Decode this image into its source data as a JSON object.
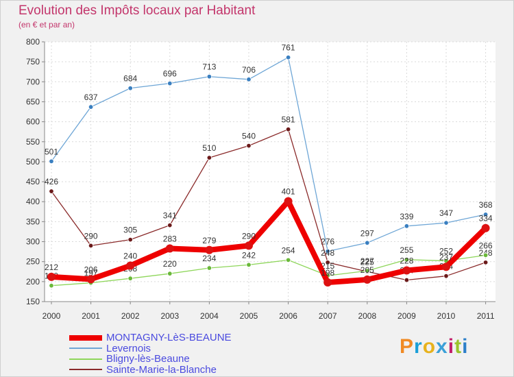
{
  "header": {
    "title": "Evolution des Impôts locaux par Habitant",
    "subtitle": "(en € et par an)"
  },
  "brand": {
    "letters": [
      "P",
      "r",
      "o",
      "x",
      "i",
      "t",
      "i"
    ],
    "colors": [
      "#f08a24",
      "#1a9fd8",
      "#e7b21d",
      "#3aa0d8",
      "#c21e6b",
      "#9bc42d",
      "#2c7fc9"
    ]
  },
  "chart_data": {
    "type": "line",
    "title": "Evolution des Impôts locaux par Habitant",
    "subtitle": "(en € et par an)",
    "xlabel": "",
    "ylabel": "",
    "x": [
      "2000",
      "2001",
      "2002",
      "2003",
      "2004",
      "2005",
      "2006",
      "2007",
      "2008",
      "2009",
      "2010",
      "2011"
    ],
    "ylim": [
      150,
      800
    ],
    "yticks": [
      150,
      200,
      250,
      300,
      350,
      400,
      450,
      500,
      550,
      600,
      650,
      700,
      750,
      800
    ],
    "grid": true,
    "legend_position": "bottom-left",
    "series": [
      {
        "name": "Levernois",
        "color": "#6ea6d6",
        "marker": "#3a7fc0",
        "values": [
          501,
          637,
          684,
          696,
          713,
          706,
          761,
          276,
          297,
          339,
          347,
          368
        ],
        "labels": [
          "501",
          "637",
          "684",
          "696",
          "713",
          "706",
          "761",
          "276",
          "297",
          "339",
          "347",
          "368"
        ]
      },
      {
        "name": "Sainte-Marie-la-Blanche",
        "color": "#8a2a2a",
        "marker": "#6b1a1a",
        "values": [
          426,
          290,
          305,
          341,
          510,
          540,
          581,
          248,
          225,
          204,
          214,
          248
        ],
        "labels": [
          "426",
          "290",
          "305",
          "341",
          "510",
          "540",
          "581",
          "248",
          "225",
          "204",
          "214",
          "248"
        ]
      },
      {
        "name": "Bligny-lès-Beaune",
        "color": "#8ed65a",
        "marker": "#6ab83a",
        "values": [
          190,
          197,
          208,
          220,
          234,
          242,
          254,
          215,
          227,
          255,
          252,
          266
        ],
        "labels": [
          "190",
          "197",
          "208",
          "220",
          "234",
          "242",
          "254",
          "215",
          "227",
          "255",
          "252",
          "266"
        ]
      },
      {
        "name": "MONTAGNY-LèS-BEAUNE",
        "color": "#ee0000",
        "marker": "#dd1111",
        "values": [
          212,
          206,
          240,
          283,
          279,
          290,
          401,
          198,
          205,
          228,
          237,
          334
        ],
        "labels": [
          "212",
          "206",
          "240",
          "283",
          "279",
          "290",
          "401",
          "198",
          "205",
          "228",
          "237",
          "334"
        ]
      }
    ],
    "legend": [
      {
        "name": "MONTAGNY-LèS-BEAUNE",
        "color": "#ee0000"
      },
      {
        "name": "Levernois",
        "color": "#6ea6d6"
      },
      {
        "name": "Bligny-lès-Beaune",
        "color": "#8ed65a"
      },
      {
        "name": "Sainte-Marie-la-Blanche",
        "color": "#8a2a2a"
      }
    ]
  }
}
